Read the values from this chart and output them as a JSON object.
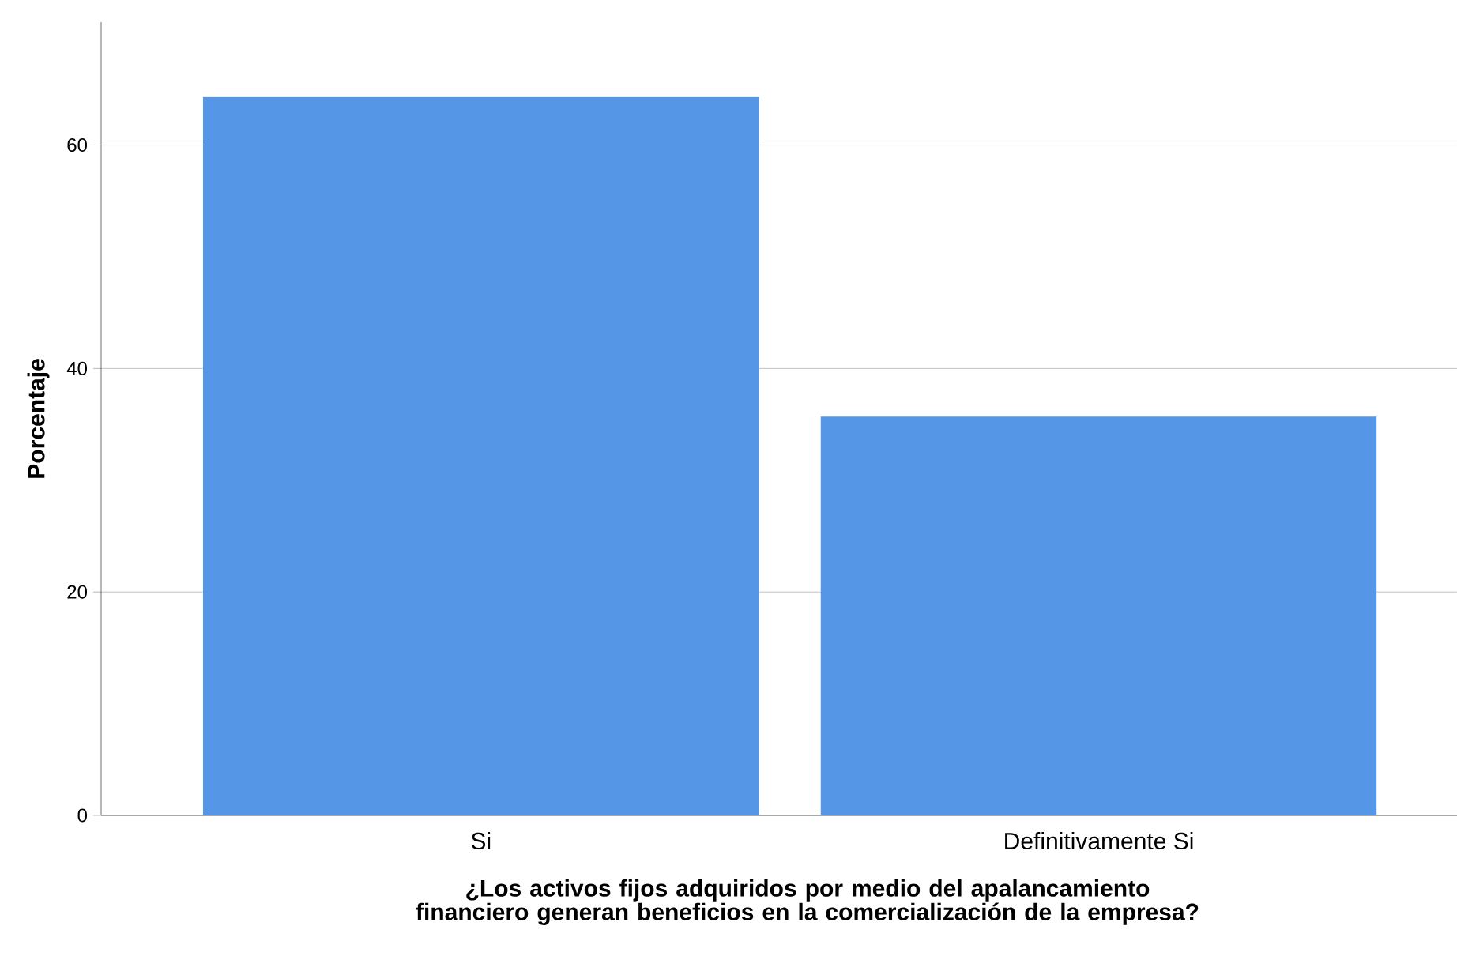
{
  "chart_data": {
    "type": "bar",
    "xlabel": "¿Los activos fijos adquiridos por medio del apalancamiento financiero generan beneficios en la comercialización de la empresa?",
    "ylabel": "Porcentaje",
    "categories": [
      "Si",
      "Definitivamente Si"
    ],
    "values": [
      64.3,
      35.7
    ],
    "color": "#5596e6",
    "ylim": [
      0,
      71
    ],
    "yticks": [
      0,
      20,
      40,
      60
    ],
    "grid": "y"
  }
}
